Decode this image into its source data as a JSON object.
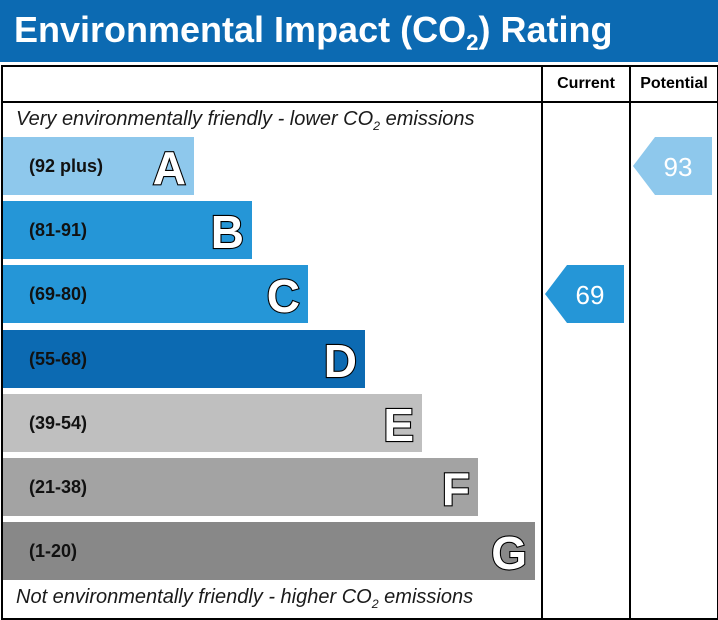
{
  "title": {
    "prefix": "Environmental Impact (CO",
    "sub": "2",
    "suffix": ") Rating"
  },
  "columns": {
    "current": "Current",
    "potential": "Potential"
  },
  "top_note": {
    "prefix": "Very environmentally friendly - lower CO",
    "sub": "2",
    "suffix": " emissions"
  },
  "bottom_note": {
    "prefix": "Not environmentally friendly - higher CO",
    "sub": "2",
    "suffix": " emissions"
  },
  "colors": {
    "title_bg": "#0c6ab2",
    "current_arrow": "#2596d7",
    "potential_arrow": "#8ec8ec"
  },
  "chart_data": {
    "type": "bar",
    "categories": [
      "A",
      "B",
      "C",
      "D",
      "E",
      "F",
      "G"
    ],
    "ranges": [
      "(92 plus)",
      "(81-91)",
      "(69-80)",
      "(55-68)",
      "(39-54)",
      "(21-38)",
      "(1-20)"
    ],
    "band_colors": [
      "#8ec8ec",
      "#2596d7",
      "#2596d7",
      "#0c6ab2",
      "#bfbfbf",
      "#a3a3a3",
      "#888888"
    ],
    "current": {
      "value": 69,
      "band": "C"
    },
    "potential": {
      "value": 93,
      "band": "A"
    }
  }
}
